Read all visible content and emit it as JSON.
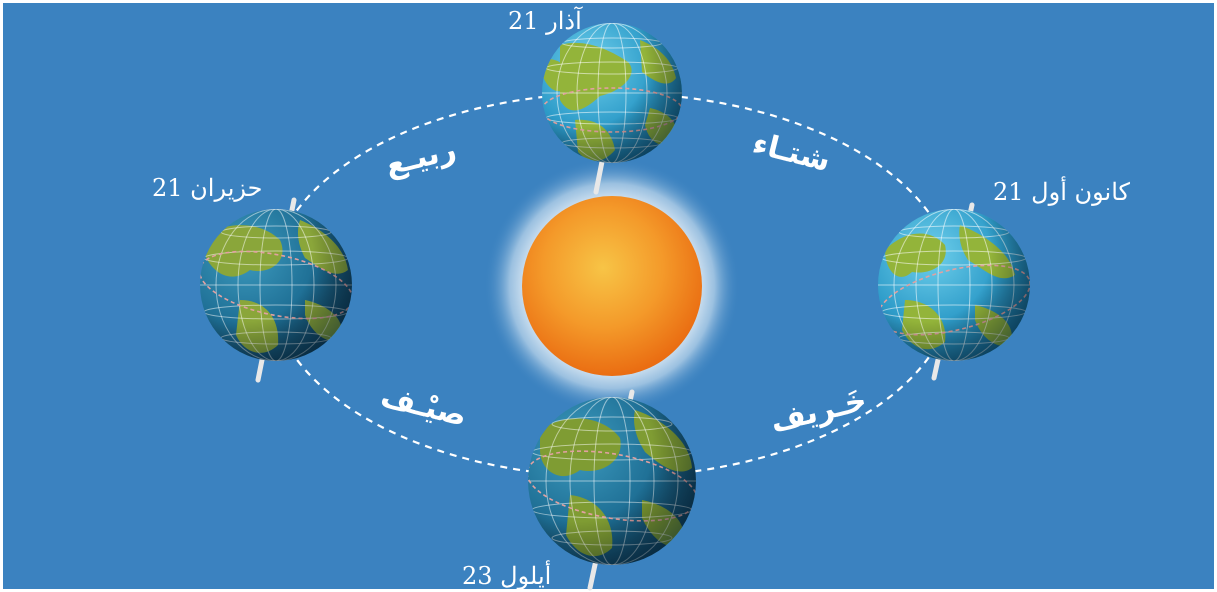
{
  "dates": {
    "march": "21 آذار",
    "june": "21 حزيران",
    "december": "21 كانون أول",
    "september": "23 أيلول"
  },
  "seasons": {
    "spring": "ربيـع",
    "winter": "شتـاء",
    "summer": "صيْـف",
    "autumn": "خَـريف"
  },
  "colors": {
    "background": "#3b82c0",
    "sun": "#f28a1e",
    "orbit": "#ffffff",
    "ocean": "#1d74a6",
    "land": "#7ea23a"
  }
}
